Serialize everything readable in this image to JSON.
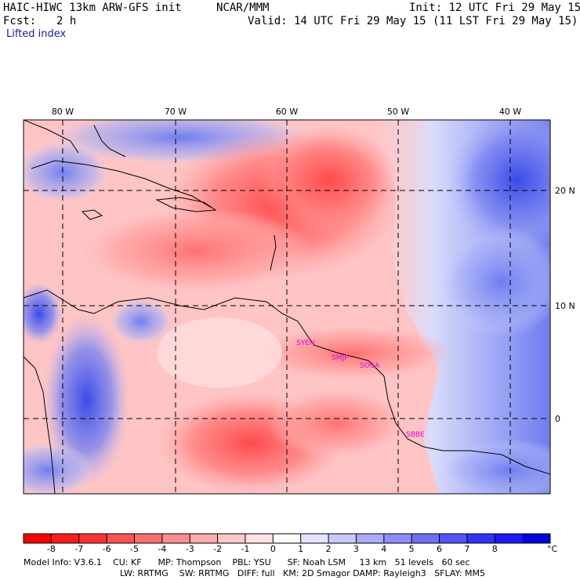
{
  "header": {
    "model": "HAIC-HIWC 13km ARW-GFS init",
    "agency": "NCAR/MMM",
    "init": "Init: 12 UTC Fri 29 May 15",
    "fcst_label": "Fcst:",
    "fcst_value": "2 h",
    "valid": "Valid: 14 UTC Fri 29 May 15 (11 LST Fri 29 May 15)",
    "field": "Lifted index"
  },
  "map": {
    "lon_labels": [
      "80 W",
      "70 W",
      "60 W",
      "50 W",
      "40 W"
    ],
    "lat_labels": [
      "20 N",
      "10 N",
      "0"
    ],
    "stations": [
      "SYEN",
      "SMJP",
      "SOCA",
      "SBBE"
    ]
  },
  "colorbar": {
    "ticks": [
      "-8",
      "-7",
      "-6",
      "-5",
      "-4",
      "-3",
      "-2",
      "-1",
      "0",
      "1",
      "2",
      "3",
      "4",
      "5",
      "6",
      "7",
      "8"
    ],
    "unit": "°C",
    "colors": [
      "#ff0000",
      "#ff1a1a",
      "#ff3333",
      "#ff5252",
      "#ff6e6e",
      "#ff8c8c",
      "#ffaaaa",
      "#ffc8c8",
      "#ffe4e4",
      "#ffffff",
      "#e4e4ff",
      "#c8c8ff",
      "#aaaaff",
      "#8c8cff",
      "#6e6eff",
      "#5252ff",
      "#3333ff",
      "#1a1aff",
      "#0000e6"
    ]
  },
  "footer": {
    "line1": "Model Info: V3.6.1    CU: KF      MP: Thompson    PBL: YSU      SF: Noah LSM     13 km   51 levels   60 sec",
    "line2": "LW: RRTMG    SW: RRTMG   DIFF: full   KM: 2D Smagor DAMP: Rayleigh3   SFLAY: MM5"
  }
}
